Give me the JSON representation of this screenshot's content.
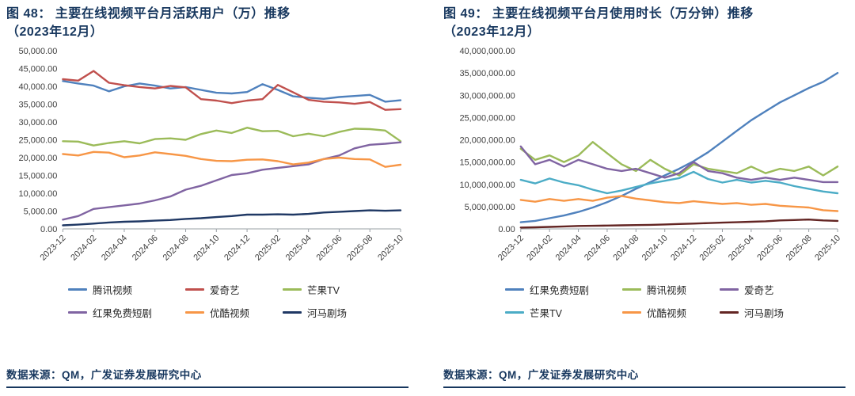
{
  "chart_data": [
    {
      "type": "line",
      "title": "图 48：主要在线视频平台月活跃用户（万）推移（2023年12月）",
      "title_lines": [
        "图 48：  主要在线视频平台月活跃用户（万）推移",
        "（2023年12月）"
      ],
      "source_note": "数据来源：QM，广发证券发展研究中心",
      "xlabel": "",
      "ylabel": "",
      "ylim": [
        0,
        50000
      ],
      "y_step": 5000,
      "grid": false,
      "legend_position": "bottom",
      "x_tick_every": 2,
      "x_tick_labels": [
        "2023-12",
        "2024-02",
        "2024-04",
        "2024-06",
        "2024-08",
        "2024-10",
        "2024-12",
        "2025-02",
        "2025-04",
        "2025-06",
        "2025-08",
        "2025-10"
      ],
      "series": [
        {
          "name": "腾讯视频",
          "color": "#4F81BD",
          "values": [
            41500,
            40800,
            40200,
            38600,
            40000,
            40800,
            40200,
            39400,
            39800,
            39000,
            38200,
            38000,
            38400,
            40600,
            39000,
            37200,
            36800,
            36500,
            37000,
            37300,
            37600,
            35700,
            36100
          ]
        },
        {
          "name": "爱奇艺",
          "color": "#C0504D",
          "values": [
            42000,
            41600,
            44300,
            41000,
            40300,
            39800,
            39400,
            40100,
            39700,
            36400,
            36000,
            35300,
            36000,
            36400,
            40400,
            38300,
            36200,
            35700,
            35500,
            35100,
            35600,
            33400,
            33600
          ]
        },
        {
          "name": "芒果TV",
          "color": "#9BBB59",
          "values": [
            24600,
            24500,
            23400,
            24100,
            24600,
            24000,
            25200,
            25400,
            25000,
            26600,
            27600,
            26900,
            28400,
            27400,
            27500,
            26000,
            26700,
            26000,
            27200,
            28100,
            28000,
            27600,
            24600
          ]
        },
        {
          "name": "红果免费短剧",
          "color": "#8064A2",
          "values": [
            2600,
            3600,
            5600,
            6100,
            6600,
            7100,
            8000,
            9100,
            11000,
            12100,
            13600,
            15100,
            15600,
            16600,
            17100,
            17600,
            18100,
            19600,
            20600,
            22600,
            23600,
            23900,
            24300
          ]
        },
        {
          "name": "优酷视频",
          "color": "#F79646",
          "values": [
            21000,
            20600,
            21600,
            21400,
            20100,
            20600,
            21500,
            21000,
            20500,
            19600,
            19100,
            19000,
            19400,
            19500,
            19000,
            18100,
            18600,
            19600,
            20000,
            19600,
            19500,
            17400,
            18000
          ]
        },
        {
          "name": "河马剧场",
          "color": "#1F3864",
          "values": [
            1000,
            1200,
            1500,
            1800,
            2000,
            2100,
            2300,
            2500,
            2800,
            3000,
            3300,
            3600,
            4000,
            4000,
            4100,
            4000,
            4200,
            4600,
            4800,
            5000,
            5200,
            5100,
            5200
          ]
        }
      ]
    },
    {
      "type": "line",
      "title": "图 49：主要在线视频平台月使用时长（万分钟）推移（2023年12月）",
      "title_lines": [
        "图 49：  主要在线视频平台月使用时长（万分钟）推移",
        "（2023年12月）"
      ],
      "source_note": "数据来源：QM，广发证券发展研究中心",
      "xlabel": "",
      "ylabel": "",
      "ylim": [
        0,
        40000000
      ],
      "y_step": 5000000,
      "grid": false,
      "legend_position": "bottom",
      "x_tick_every": 2,
      "x_tick_labels": [
        "2023-12",
        "2024-02",
        "2024-04",
        "2024-06",
        "2024-08",
        "2024-10",
        "2024-12",
        "2025-02",
        "2025-04",
        "2025-06",
        "2025-08",
        "2025-10"
      ],
      "series": [
        {
          "name": "红果免费短剧",
          "color": "#4F81BD",
          "values": [
            1500000,
            1800000,
            2400000,
            3000000,
            3800000,
            4800000,
            6000000,
            7400000,
            9000000,
            10500000,
            12000000,
            13500000,
            15200000,
            17200000,
            19600000,
            22000000,
            24400000,
            26400000,
            28400000,
            30000000,
            31600000,
            33000000,
            35000000
          ]
        },
        {
          "name": "腾讯视频",
          "color": "#9BBB59",
          "values": [
            18000000,
            15500000,
            16500000,
            15000000,
            16500000,
            19500000,
            17000000,
            14500000,
            13000000,
            15500000,
            13500000,
            12000000,
            14500000,
            13500000,
            13000000,
            12500000,
            14000000,
            12500000,
            13500000,
            13000000,
            14000000,
            12000000,
            14000000
          ]
        },
        {
          "name": "爱奇艺",
          "color": "#8064A2",
          "values": [
            18500000,
            14500000,
            15500000,
            14000000,
            15500000,
            14500000,
            13500000,
            13000000,
            13500000,
            12500000,
            11500000,
            12500000,
            15000000,
            13000000,
            12500000,
            11500000,
            11000000,
            11500000,
            11000000,
            11500000,
            11000000,
            10500000,
            10500000
          ]
        },
        {
          "name": "芒果TV",
          "color": "#4BACC6",
          "values": [
            11000000,
            10200000,
            11300000,
            10400000,
            9800000,
            8800000,
            8000000,
            8600000,
            9400000,
            10200000,
            10800000,
            11400000,
            12800000,
            11200000,
            10400000,
            11000000,
            10400000,
            10800000,
            10400000,
            9600000,
            9000000,
            8400000,
            8000000
          ]
        },
        {
          "name": "优酷视频",
          "color": "#F79646",
          "values": [
            6500000,
            6100000,
            6700000,
            6300000,
            6700000,
            6300000,
            7000000,
            7400000,
            6800000,
            6400000,
            6000000,
            5800000,
            6200000,
            5900000,
            5600000,
            5800000,
            5400000,
            5600000,
            5200000,
            5000000,
            4800000,
            4200000,
            4000000
          ]
        },
        {
          "name": "河马剧场",
          "color": "#632523",
          "values": [
            300000,
            350000,
            450000,
            550000,
            650000,
            700000,
            750000,
            800000,
            850000,
            900000,
            1000000,
            1100000,
            1200000,
            1300000,
            1400000,
            1500000,
            1600000,
            1700000,
            1900000,
            2000000,
            2100000,
            1900000,
            1800000
          ]
        }
      ]
    }
  ]
}
